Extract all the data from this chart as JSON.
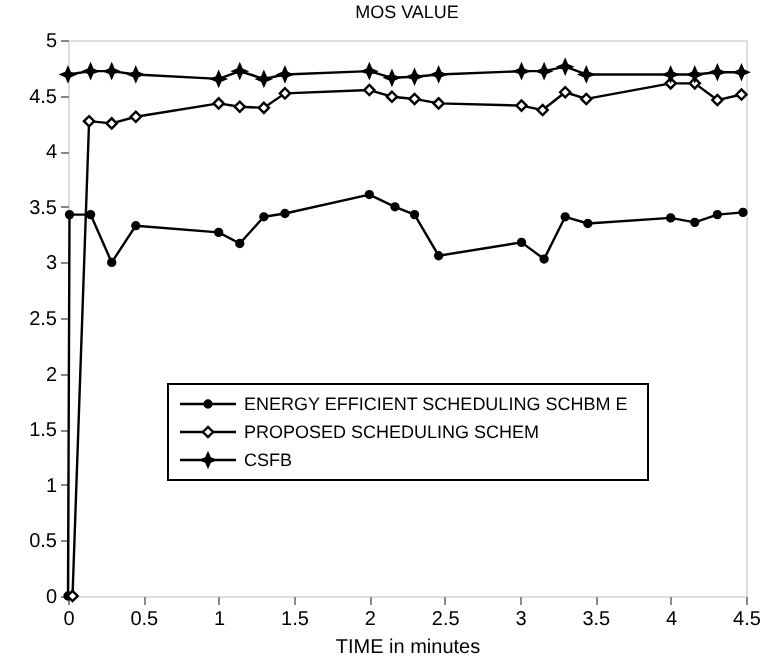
{
  "chart_data": {
    "type": "line",
    "title": "MOS VALUE",
    "xlabel": "TIME in minutes",
    "xlim": [
      0,
      4.5
    ],
    "xticks": [
      0,
      0.5,
      1,
      1.5,
      2,
      2.5,
      3,
      3.5,
      4,
      4.5
    ],
    "ylim": [
      0,
      5
    ],
    "yticks": [
      0,
      0.5,
      1,
      1.5,
      2,
      2.5,
      3,
      3.5,
      4,
      4.5,
      5
    ],
    "grid": false,
    "legend": "bottom",
    "line_style": "solid",
    "series": [
      {
        "name": "ENERGY EFFICIENT SCHEDULING SCHBM E",
        "color": "#000000",
        "marker": "circle",
        "x": [
          0,
          0.01,
          0.15,
          0.29,
          0.45,
          1.0,
          1.14,
          1.3,
          1.44,
          2.0,
          2.17,
          2.3,
          2.46,
          3.01,
          3.16,
          3.3,
          3.45,
          4.0,
          4.16,
          4.31,
          4.48
        ],
        "values": [
          0,
          3.43,
          3.43,
          3.0,
          3.33,
          3.27,
          3.17,
          3.41,
          3.44,
          3.61,
          3.5,
          3.43,
          3.06,
          3.18,
          3.03,
          3.41,
          3.35,
          3.4,
          3.36,
          3.43,
          3.45
        ]
      },
      {
        "name": "PROPOSED SCHEDULING SCHEM",
        "color": "#000000",
        "marker": "diamond",
        "x": [
          0.03,
          0.14,
          0.29,
          0.45,
          1.0,
          1.14,
          1.3,
          1.44,
          2.0,
          2.15,
          2.3,
          2.46,
          3.01,
          3.15,
          3.3,
          3.44,
          4.0,
          4.16,
          4.31,
          4.47
        ],
        "values": [
          0,
          4.27,
          4.25,
          4.31,
          4.43,
          4.4,
          4.39,
          4.52,
          4.55,
          4.49,
          4.47,
          4.43,
          4.41,
          4.37,
          4.53,
          4.47,
          4.61,
          4.61,
          4.46,
          4.51
        ]
      },
      {
        "name": "CSFB",
        "color": "#000000",
        "marker": "star",
        "x": [
          0,
          0.15,
          0.29,
          0.45,
          1.0,
          1.14,
          1.3,
          1.44,
          2.0,
          2.15,
          2.3,
          2.46,
          3.01,
          3.16,
          3.3,
          3.44,
          4.0,
          4.16,
          4.31,
          4.47
        ],
        "values": [
          4.69,
          4.72,
          4.72,
          4.69,
          4.65,
          4.72,
          4.65,
          4.69,
          4.72,
          4.66,
          4.67,
          4.69,
          4.72,
          4.72,
          4.76,
          4.69,
          4.69,
          4.69,
          4.71,
          4.71
        ]
      }
    ]
  }
}
